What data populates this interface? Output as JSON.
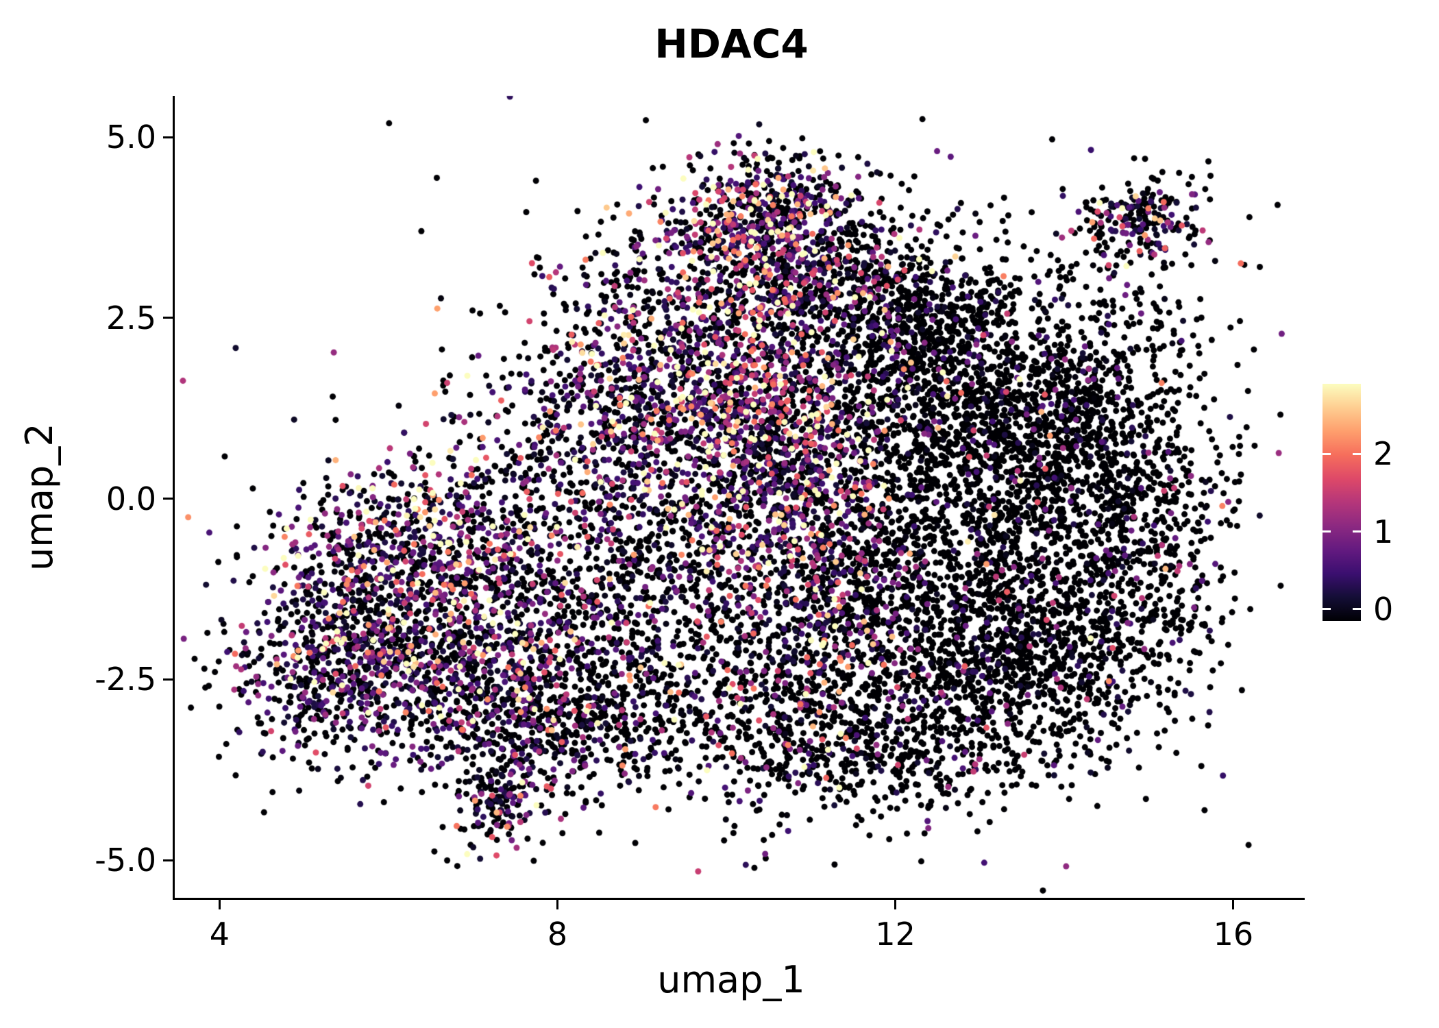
{
  "title": "HDAC4",
  "background": "#ffffff",
  "axis_color": "#000000",
  "text_color": "#000000",
  "axes": {
    "x": {
      "label": "umap_1",
      "ticks": [
        "4",
        "8",
        "12",
        "16"
      ],
      "tick_values": [
        4,
        8,
        12,
        16
      ]
    },
    "y": {
      "label": "umap_2",
      "ticks": [
        "5.0",
        "2.5",
        "0.0",
        "-2.5",
        "-5.0"
      ],
      "tick_values": [
        5.0,
        2.5,
        0.0,
        -2.5,
        -5.0
      ]
    }
  },
  "colorbar": {
    "ticks": [
      "2",
      "1",
      "0"
    ],
    "tick_values": [
      2,
      1,
      0
    ],
    "bar_min": -0.15,
    "bar_max": 2.9,
    "colormap": "magma"
  },
  "chart_data": {
    "type": "scatter",
    "title": "HDAC4",
    "xlabel": "umap_1",
    "ylabel": "umap_2",
    "xlim": [
      3.47,
      16.65
    ],
    "ylim": [
      -5.52,
      5.57
    ],
    "grid": false,
    "legend_position": "right-colorbar",
    "point_radius_px": 4.5,
    "expr_max": 2.7,
    "seed": 42,
    "magma_stops": [
      {
        "t": 0.0,
        "c": "#000004"
      },
      {
        "t": 0.1,
        "c": "#140e36"
      },
      {
        "t": 0.2,
        "c": "#3b0f70"
      },
      {
        "t": 0.3,
        "c": "#641a80"
      },
      {
        "t": 0.4,
        "c": "#8c2981"
      },
      {
        "t": 0.5,
        "c": "#b5367a"
      },
      {
        "t": 0.6,
        "c": "#de4968"
      },
      {
        "t": 0.7,
        "c": "#f66e5c"
      },
      {
        "t": 0.8,
        "c": "#fe9f6d"
      },
      {
        "t": 0.9,
        "c": "#fece91"
      },
      {
        "t": 1.0,
        "c": "#fcfdbf"
      }
    ],
    "clusters": [
      {
        "cx": 6.1,
        "cy": -1.7,
        "sx": 0.85,
        "sy": 0.85,
        "n": 850,
        "p_zero": 0.42,
        "expr_mean": 0.9
      },
      {
        "cx": 5.4,
        "cy": -2.4,
        "sx": 0.55,
        "sy": 0.6,
        "n": 350,
        "p_zero": 0.55,
        "expr_mean": 0.7
      },
      {
        "cx": 6.5,
        "cy": -0.5,
        "sx": 0.75,
        "sy": 0.55,
        "n": 400,
        "p_zero": 0.32,
        "expr_mean": 1.1
      },
      {
        "cx": 7.3,
        "cy": -2.6,
        "sx": 0.7,
        "sy": 0.6,
        "n": 400,
        "p_zero": 0.5,
        "expr_mean": 0.8
      },
      {
        "cx": 7.3,
        "cy": -4.2,
        "sx": 0.28,
        "sy": 0.33,
        "n": 160,
        "p_zero": 0.45,
        "expr_mean": 0.8
      },
      {
        "cx": 8.4,
        "cy": -3.1,
        "sx": 0.8,
        "sy": 0.5,
        "n": 350,
        "p_zero": 0.78,
        "expr_mean": 0.6
      },
      {
        "cx": 8.4,
        "cy": -1.3,
        "sx": 0.8,
        "sy": 0.9,
        "n": 450,
        "p_zero": 0.68,
        "expr_mean": 0.7
      },
      {
        "cx": 8.5,
        "cy": 0.9,
        "sx": 0.8,
        "sy": 0.8,
        "n": 450,
        "p_zero": 0.5,
        "expr_mean": 0.9
      },
      {
        "cx": 9.6,
        "cy": 1.7,
        "sx": 0.75,
        "sy": 0.75,
        "n": 550,
        "p_zero": 0.38,
        "expr_mean": 1.0
      },
      {
        "cx": 10.4,
        "cy": 3.5,
        "sx": 0.6,
        "sy": 0.55,
        "n": 500,
        "p_zero": 0.35,
        "expr_mean": 1.0
      },
      {
        "cx": 11.3,
        "cy": 3.1,
        "sx": 0.55,
        "sy": 0.6,
        "n": 300,
        "p_zero": 0.68,
        "expr_mean": 0.8
      },
      {
        "cx": 10.7,
        "cy": 0.7,
        "sx": 0.55,
        "sy": 0.9,
        "n": 650,
        "p_zero": 0.3,
        "expr_mean": 1.1
      },
      {
        "cx": 11.2,
        "cy": -1.3,
        "sx": 0.5,
        "sy": 1.0,
        "n": 450,
        "p_zero": 0.5,
        "expr_mean": 1.0
      },
      {
        "cx": 10.3,
        "cy": -2.6,
        "sx": 0.8,
        "sy": 0.8,
        "n": 450,
        "p_zero": 0.72,
        "expr_mean": 0.7
      },
      {
        "cx": 12.6,
        "cy": 1.3,
        "sx": 1.0,
        "sy": 0.9,
        "n": 1000,
        "p_zero": 0.87,
        "expr_mean": 0.6
      },
      {
        "cx": 13.8,
        "cy": 0.3,
        "sx": 0.9,
        "sy": 0.95,
        "n": 850,
        "p_zero": 0.9,
        "expr_mean": 0.6
      },
      {
        "cx": 12.6,
        "cy": -1.6,
        "sx": 0.95,
        "sy": 0.9,
        "n": 900,
        "p_zero": 0.86,
        "expr_mean": 0.6
      },
      {
        "cx": 13.9,
        "cy": -2.2,
        "sx": 0.8,
        "sy": 0.7,
        "n": 600,
        "p_zero": 0.9,
        "expr_mean": 0.5
      },
      {
        "cx": 11.9,
        "cy": -3.4,
        "sx": 0.95,
        "sy": 0.55,
        "n": 500,
        "p_zero": 0.85,
        "expr_mean": 0.6
      },
      {
        "cx": 15.0,
        "cy": -0.7,
        "sx": 0.45,
        "sy": 0.9,
        "n": 280,
        "p_zero": 0.86,
        "expr_mean": 0.6
      },
      {
        "cx": 12.3,
        "cy": 2.7,
        "sx": 0.75,
        "sy": 0.5,
        "n": 350,
        "p_zero": 0.83,
        "expr_mean": 0.6
      },
      {
        "cx": 14.9,
        "cy": 3.8,
        "sx": 0.38,
        "sy": 0.3,
        "n": 230,
        "p_zero": 0.55,
        "expr_mean": 0.8
      },
      {
        "cx": 10.6,
        "cy": 4.1,
        "sx": 0.45,
        "sy": 0.35,
        "n": 200,
        "p_zero": 0.4,
        "expr_mean": 1.0
      },
      {
        "cx": 9.8,
        "cy": -0.6,
        "sx": 0.6,
        "sy": 0.6,
        "n": 250,
        "p_zero": 0.6,
        "expr_mean": 0.8
      },
      {
        "cx": 10.0,
        "cy": 0.3,
        "sx": 1.8,
        "sy": 1.5,
        "n": 400,
        "p_zero": 0.55,
        "expr_mean": 0.8
      },
      {
        "cx": 13.0,
        "cy": -0.2,
        "sx": 1.9,
        "sy": 1.7,
        "n": 500,
        "p_zero": 0.88,
        "expr_mean": 0.5
      },
      {
        "cx": 7.0,
        "cy": -2.0,
        "sx": 1.6,
        "sy": 1.1,
        "n": 350,
        "p_zero": 0.5,
        "expr_mean": 0.8
      },
      {
        "cx": 11.0,
        "cy": 2.2,
        "sx": 1.3,
        "sy": 1.0,
        "n": 350,
        "p_zero": 0.6,
        "expr_mean": 0.9
      },
      {
        "cx": 9.3,
        "cy": 3.2,
        "sx": 0.7,
        "sy": 0.7,
        "n": 180,
        "p_zero": 0.5,
        "expr_mean": 0.9
      },
      {
        "cx": 14.2,
        "cy": 1.6,
        "sx": 0.8,
        "sy": 0.8,
        "n": 350,
        "p_zero": 0.9,
        "expr_mean": 0.5
      },
      {
        "cx": 10.2,
        "cy": -0.2,
        "sx": 3.2,
        "sy": 2.4,
        "n": 250,
        "p_zero": 0.7,
        "expr_mean": 0.7
      }
    ]
  }
}
